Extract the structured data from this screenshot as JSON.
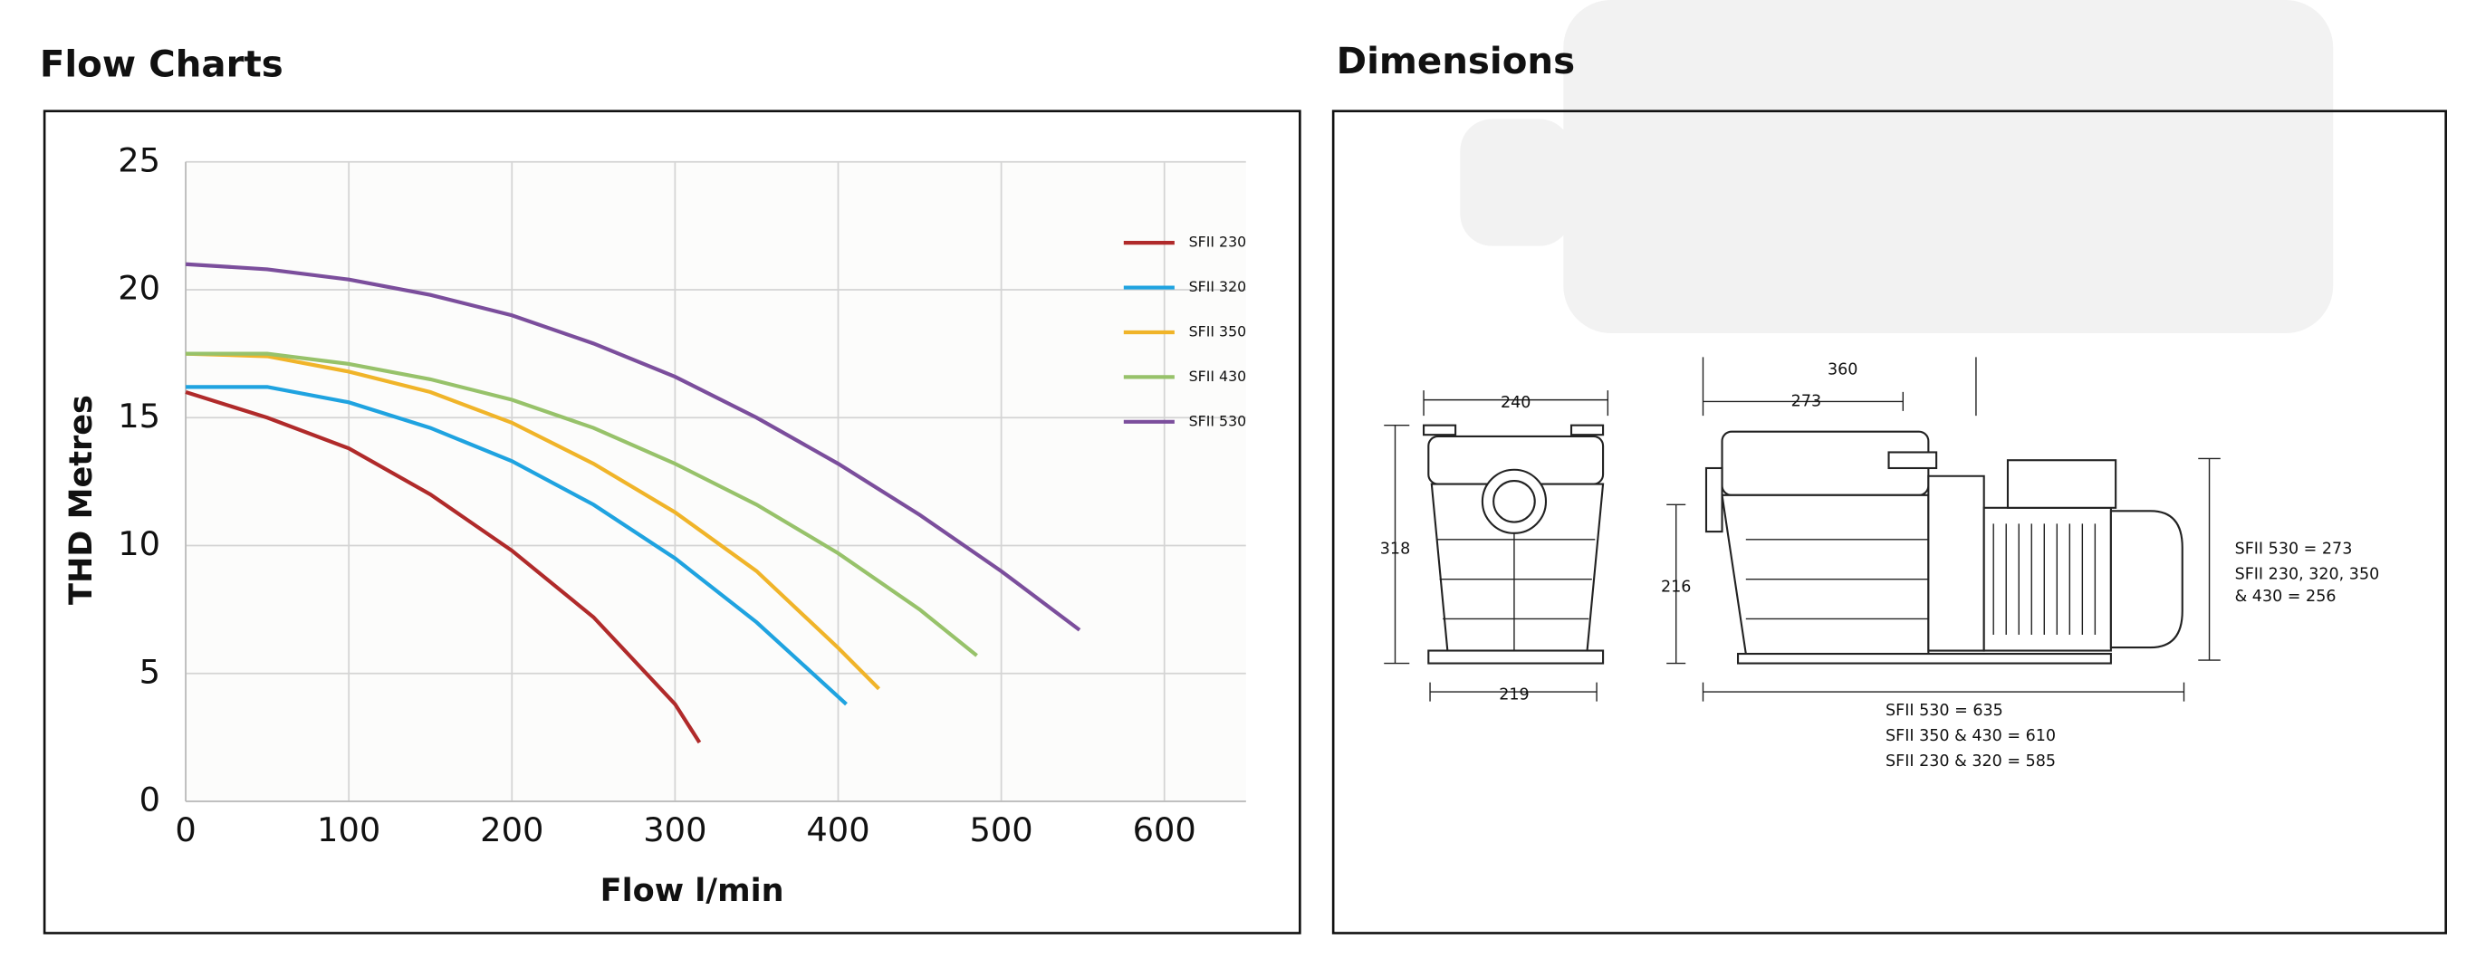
{
  "headings": {
    "flow": "Flow Charts",
    "dimensions": "Dimensions"
  },
  "chart_data": {
    "type": "line",
    "xlabel": "Flow l/min",
    "ylabel": "THD Metres",
    "xlim": [
      0,
      650
    ],
    "ylim": [
      0,
      25
    ],
    "xticks": [
      0,
      100,
      200,
      300,
      400,
      500,
      600
    ],
    "yticks": [
      0,
      5,
      10,
      15,
      20,
      25
    ],
    "grid": true,
    "legend": "upper right",
    "series": [
      {
        "name": "SFII 230",
        "color": "#b02a2a",
        "x": [
          0,
          50,
          100,
          150,
          200,
          250,
          300,
          315
        ],
        "values": [
          16,
          15,
          13.8,
          12,
          9.8,
          7.2,
          3.8,
          2.3
        ]
      },
      {
        "name": "SFII 320",
        "color": "#1fa3e0",
        "x": [
          0,
          50,
          100,
          150,
          200,
          250,
          300,
          350,
          405
        ],
        "values": [
          16.2,
          16.2,
          15.6,
          14.6,
          13.3,
          11.6,
          9.5,
          7,
          3.8
        ]
      },
      {
        "name": "SFII 350",
        "color": "#f0b429",
        "x": [
          0,
          50,
          100,
          150,
          200,
          250,
          300,
          350,
          400,
          425
        ],
        "values": [
          17.5,
          17.4,
          16.8,
          16,
          14.8,
          13.2,
          11.3,
          9,
          6,
          4.4
        ]
      },
      {
        "name": "SFII 430",
        "color": "#97c26a",
        "x": [
          0,
          50,
          100,
          150,
          200,
          250,
          300,
          350,
          400,
          450,
          485
        ],
        "values": [
          17.5,
          17.5,
          17.1,
          16.5,
          15.7,
          14.6,
          13.2,
          11.6,
          9.7,
          7.5,
          5.7
        ]
      },
      {
        "name": "SFII 530",
        "color": "#7b4e9c",
        "x": [
          0,
          50,
          100,
          150,
          200,
          250,
          300,
          350,
          400,
          450,
          500,
          548
        ],
        "values": [
          21,
          20.8,
          20.4,
          19.8,
          19,
          17.9,
          16.6,
          15,
          13.2,
          11.2,
          9,
          6.7
        ]
      }
    ]
  },
  "dimensions": {
    "front_width": "240",
    "front_height": "318",
    "front_base": "219",
    "side_overall": "360",
    "side_basket": "273",
    "side_height": "216",
    "height_530": "SFII 530 = 273",
    "height_other_1": "SFII 230, 320, 350",
    "height_other_2": "& 430 = 256",
    "length_530": "SFII 530 = 635",
    "length_350_430": "SFII 350 & 430 = 610",
    "length_230_320": "SFII 230 & 320 = 585"
  }
}
